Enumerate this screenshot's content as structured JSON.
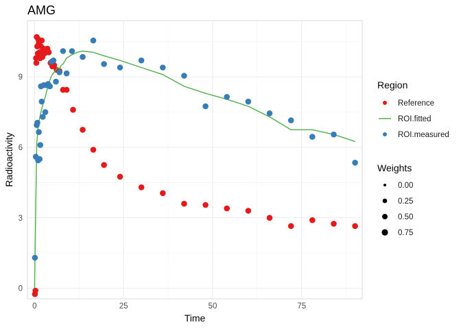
{
  "chart_data": {
    "type": "scatter",
    "title": "AMG",
    "xlabel": "Time",
    "ylabel": "Radioactivity",
    "xlim": [
      -2,
      92
    ],
    "ylim": [
      -0.45,
      11.4
    ],
    "x_ticks": [
      0,
      25,
      50,
      75
    ],
    "x_tick_labels": [
      "0",
      "25",
      "50",
      "75"
    ],
    "y_ticks": [
      0,
      3,
      6,
      9
    ],
    "y_tick_labels": [
      "0",
      "3",
      "6",
      "9"
    ],
    "grid": true,
    "legend_placement": "right",
    "colors": {
      "Reference": "#E41A1C",
      "ROI.fitted": "#4DAF4A",
      "ROI.measured": "#377EB8"
    },
    "series": [
      {
        "name": "Reference",
        "kind": "points",
        "x": [
          0.1,
          0.25,
          0.4,
          0.5,
          0.6,
          0.75,
          0.9,
          1.05,
          1.2,
          1.4,
          1.6,
          1.8,
          2.0,
          2.2,
          2.5,
          2.8,
          3.2,
          3.6,
          4.0,
          4.5,
          5.0,
          5.5,
          6.2,
          7.0,
          8.0,
          9.0,
          10.8,
          13.5,
          16.5,
          19.5,
          24.0,
          30.0,
          36.0,
          42.0,
          48.0,
          54.0,
          60.0,
          66.0,
          72.0,
          78.0,
          84.0,
          90.0
        ],
        "y": [
          -0.25,
          -0.1,
          9.8,
          9.6,
          10.7,
          10.3,
          10.0,
          10.6,
          10.45,
          10.05,
          9.8,
          10.3,
          10.55,
          9.85,
          10.2,
          10.0,
          10.1,
          10.2,
          10.05,
          9.6,
          9.45,
          9.5,
          9.3,
          9.25,
          8.45,
          8.45,
          7.6,
          6.75,
          5.9,
          5.25,
          4.75,
          4.3,
          4.05,
          3.6,
          3.55,
          3.4,
          3.3,
          3.0,
          2.65,
          2.9,
          2.75,
          2.65
        ]
      },
      {
        "name": "ROI.fitted",
        "kind": "line",
        "x": [
          0.0,
          0.3,
          0.6,
          1.0,
          1.5,
          2.0,
          2.5,
          3.0,
          3.5,
          4.0,
          4.5,
          5.0,
          5.5,
          6.0,
          6.5,
          7.0,
          7.5,
          8.0,
          9.0,
          10.5,
          12.0,
          13.5,
          16.5,
          19.5,
          24.0,
          30.0,
          36.0,
          42.0,
          48.0,
          54.0,
          60.0,
          66.0,
          72.0,
          78.0,
          84.0,
          90.0
        ],
        "y": [
          0.0,
          3.0,
          6.1,
          6.9,
          7.3,
          7.65,
          7.9,
          8.15,
          8.45,
          8.7,
          8.95,
          9.1,
          9.2,
          9.3,
          9.4,
          9.35,
          9.5,
          9.55,
          9.8,
          9.95,
          10.05,
          10.1,
          10.05,
          9.9,
          9.7,
          9.4,
          9.1,
          8.6,
          8.3,
          8.05,
          7.75,
          7.3,
          6.75,
          6.75,
          6.55,
          6.25
        ]
      },
      {
        "name": "ROI.measured",
        "kind": "points",
        "x": [
          0.1,
          0.35,
          0.6,
          0.8,
          1.0,
          1.2,
          1.4,
          1.6,
          1.8,
          2.0,
          2.3,
          2.6,
          3.0,
          3.4,
          3.8,
          4.3,
          4.8,
          5.3,
          6.0,
          7.0,
          8.0,
          9.0,
          10.5,
          13.5,
          16.5,
          19.5,
          24.0,
          30.0,
          36.0,
          42.0,
          48.0,
          54.0,
          60.0,
          66.0,
          72.0,
          78.0,
          84.0,
          90.0
        ],
        "y": [
          1.3,
          5.6,
          6.95,
          7.05,
          5.45,
          6.65,
          5.5,
          6.1,
          8.6,
          7.95,
          7.3,
          8.65,
          7.5,
          8.65,
          8.7,
          8.6,
          9.65,
          9.7,
          8.8,
          9.2,
          10.1,
          9.15,
          10.1,
          9.85,
          10.55,
          9.55,
          9.4,
          9.7,
          9.4,
          9.05,
          7.75,
          8.15,
          7.95,
          7.45,
          7.15,
          6.45,
          6.55,
          5.35
        ]
      }
    ],
    "legend": {
      "region_title": "Region",
      "region_items": [
        "Reference",
        "ROI.fitted",
        "ROI.measured"
      ],
      "weights_title": "Weights",
      "weights_items": [
        "0.00",
        "0.25",
        "0.50",
        "0.75"
      ]
    }
  }
}
